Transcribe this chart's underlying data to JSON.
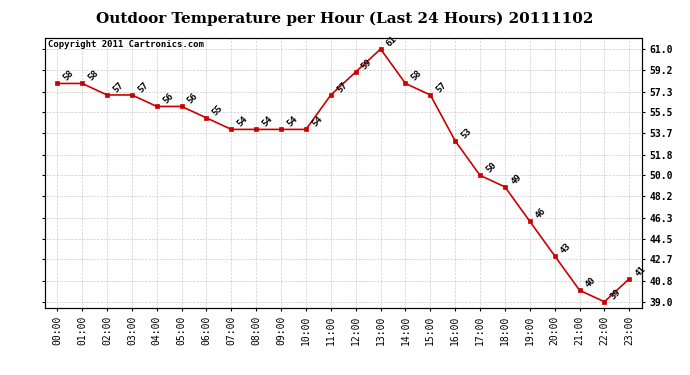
{
  "title": "Outdoor Temperature per Hour (Last 24 Hours) 20111102",
  "copyright": "Copyright 2011 Cartronics.com",
  "hours": [
    0,
    1,
    2,
    3,
    4,
    5,
    6,
    7,
    8,
    9,
    10,
    11,
    12,
    13,
    14,
    15,
    16,
    17,
    18,
    19,
    20,
    21,
    22,
    23
  ],
  "temps": [
    58,
    58,
    57,
    57,
    56,
    56,
    55,
    54,
    54,
    54,
    54,
    57,
    59,
    61,
    58,
    57,
    53,
    50,
    49,
    46,
    43,
    40,
    39,
    41
  ],
  "x_labels": [
    "00:00",
    "01:00",
    "02:00",
    "03:00",
    "04:00",
    "05:00",
    "06:00",
    "07:00",
    "08:00",
    "09:00",
    "10:00",
    "11:00",
    "12:00",
    "13:00",
    "14:00",
    "15:00",
    "16:00",
    "17:00",
    "18:00",
    "19:00",
    "20:00",
    "21:00",
    "22:00",
    "23:00"
  ],
  "y_ticks": [
    39.0,
    40.8,
    42.7,
    44.5,
    46.3,
    48.2,
    50.0,
    51.8,
    53.7,
    55.5,
    57.3,
    59.2,
    61.0
  ],
  "ylim_min": 38.5,
  "ylim_max": 62.0,
  "line_color": "#cc0000",
  "marker_color": "#cc0000",
  "grid_color": "#cccccc",
  "bg_color": "#ffffff",
  "title_fontsize": 11,
  "tick_fontsize": 7,
  "annotation_fontsize": 6.5,
  "copyright_fontsize": 6.5
}
